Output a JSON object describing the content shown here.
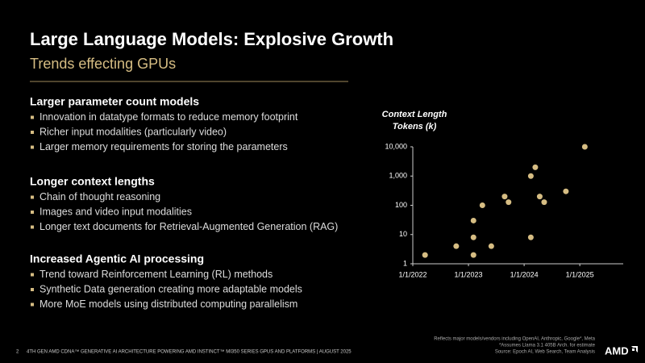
{
  "slide": {
    "title": "Large Language Models: Explosive Growth",
    "subtitle": "Trends effecting GPUs",
    "sections": [
      {
        "heading": "Larger parameter count models",
        "bullets": [
          "Innovation in datatype formats to reduce memory footprint",
          "Richer input modalities (particularly video)",
          "Larger memory requirements for storing the parameters"
        ]
      },
      {
        "heading": "Longer context lengths",
        "bullets": [
          "Chain of thought reasoning",
          "Images and video input modalities",
          "Longer text documents for Retrieval-Augmented Generation (RAG)"
        ]
      },
      {
        "heading": "Increased Agentic AI processing",
        "bullets": [
          "Trend toward Reinforcement Learning (RL)  methods",
          "Synthetic Data generation creating more adaptable models",
          "More MoE models using distributed computing parallelism"
        ]
      }
    ],
    "notes": [
      "Reflects major models/vendors including OpenAI, Anthropic, Google*, Meta",
      "*Assumes Llama 3.1 405B Arch. for estimate",
      "Source: Epoch AI, Web Search, Team Analysis"
    ],
    "page_number": "2",
    "footer": "4TH GEN AMD CDNA™ GENERATIVE AI ARCHITECTURE POWERING AMD INSTINCT™ MI350 SERIES GPUS AND PLATFORMS  |  AUGUST 2025",
    "logo": "AMD"
  },
  "chart_data": {
    "type": "scatter",
    "ylabel": [
      "Context Length",
      "Tokens (k)"
    ],
    "color": "#d6bd83",
    "log_y": true,
    "x": [
      2022.22,
      2022.78,
      2023.09,
      2023.09,
      2023.09,
      2023.25,
      2023.41,
      2023.65,
      2023.72,
      2024.12,
      2024.2,
      2024.12,
      2024.28,
      2024.36,
      2024.75,
      2025.09
    ],
    "values": [
      2,
      4,
      2,
      8,
      30,
      100,
      4,
      200,
      128,
      1000,
      2000,
      8,
      200,
      128,
      300,
      10000
    ],
    "xlim": [
      2022,
      2025.78
    ],
    "ylim": [
      1,
      10000
    ],
    "xticks": [
      {
        "value": 2022,
        "label": "1/1/2022"
      },
      {
        "value": 2023,
        "label": "1/1/2023"
      },
      {
        "value": 2024,
        "label": "1/1/2024"
      },
      {
        "value": 2025,
        "label": "1/1/2025"
      }
    ],
    "yticks": [
      {
        "value": 1,
        "label": "1"
      },
      {
        "value": 10,
        "label": "10"
      },
      {
        "value": 100,
        "label": "100"
      },
      {
        "value": 1000,
        "label": "1,000"
      },
      {
        "value": 10000,
        "label": "10,000"
      }
    ]
  }
}
